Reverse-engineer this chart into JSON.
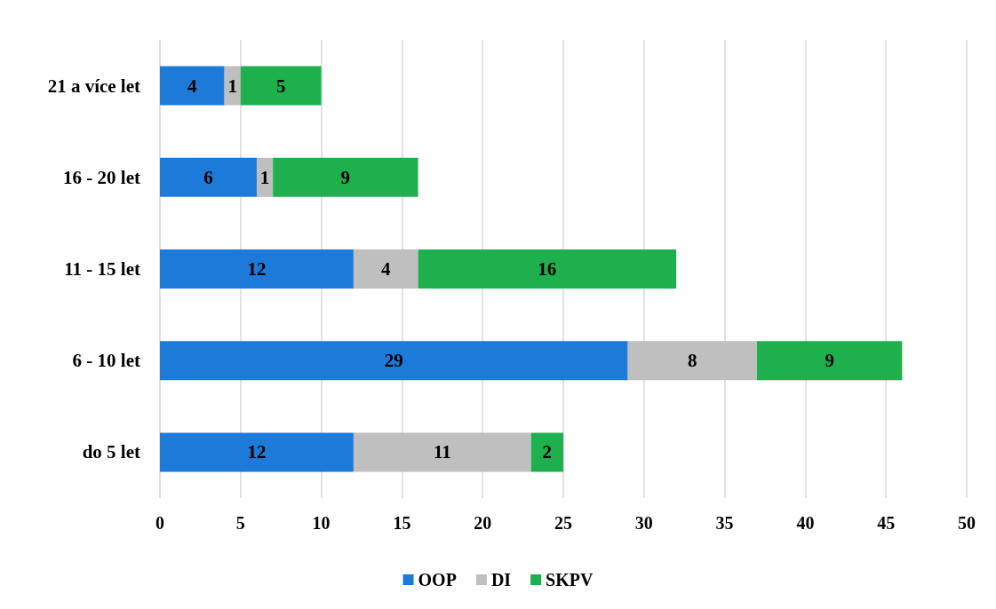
{
  "chart_data": {
    "type": "bar",
    "orientation": "horizontal",
    "stacked": true,
    "categories": [
      "21 a více let",
      "16 - 20 let",
      "11 - 15 let",
      "6 - 10 let",
      "do 5 let"
    ],
    "series": [
      {
        "name": "OOP",
        "color": "#1e7ad8",
        "values": [
          4,
          6,
          12,
          29,
          12
        ]
      },
      {
        "name": "DI",
        "color": "#bfbfbf",
        "values": [
          1,
          1,
          4,
          8,
          11
        ]
      },
      {
        "name": "SKPV",
        "color": "#1fb04e",
        "values": [
          5,
          9,
          16,
          9,
          2
        ]
      }
    ],
    "xlim": [
      0,
      50
    ],
    "xticks": [
      0,
      5,
      10,
      15,
      20,
      25,
      30,
      35,
      40,
      45,
      50
    ],
    "grid": "x",
    "legend": "bottom",
    "data_labels": true
  }
}
